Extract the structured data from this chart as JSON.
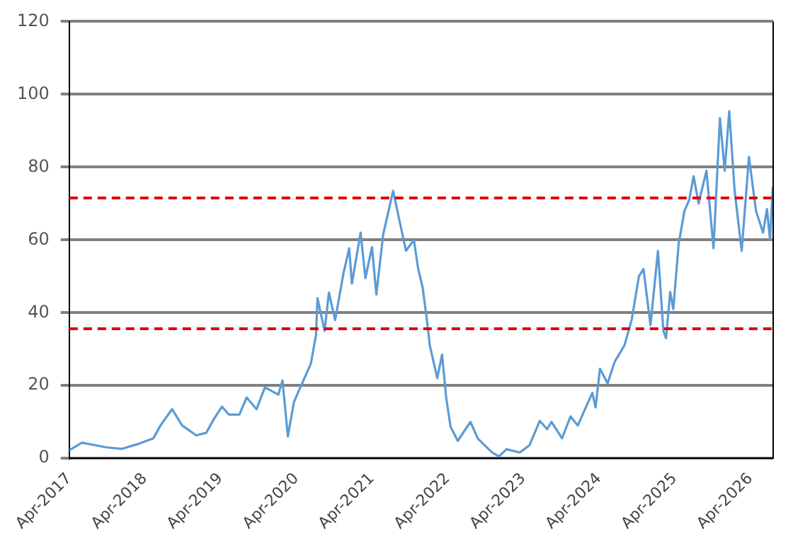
{
  "chart_data": {
    "type": "line",
    "x": [
      "2017-04-01",
      "2017-06-01",
      "2017-09-28",
      "2017-12-12",
      "2018-03-03",
      "2018-05-12",
      "2018-06-15",
      "2018-08-10",
      "2018-09-28",
      "2018-12-05",
      "2019-01-22",
      "2019-02-28",
      "2019-04-08",
      "2019-05-12",
      "2019-07-01",
      "2019-08-05",
      "2019-09-22",
      "2019-11-01",
      "2020-01-05",
      "2020-01-25",
      "2020-02-20",
      "2020-03-20",
      "2020-04-20",
      "2020-06-10",
      "2020-07-05",
      "2020-07-12",
      "2020-08-15",
      "2020-09-05",
      "2020-10-05",
      "2020-11-15",
      "2020-12-12",
      "2020-12-25",
      "2021-02-05",
      "2021-02-28",
      "2021-04-01",
      "2021-04-22",
      "2021-05-25",
      "2021-07-12",
      "2021-08-10",
      "2021-09-12",
      "2021-10-20",
      "2021-11-10",
      "2021-12-01",
      "2021-12-20",
      "2022-01-05",
      "2022-02-10",
      "2022-03-05",
      "2022-03-25",
      "2022-04-15",
      "2022-05-20",
      "2022-07-20",
      "2022-08-25",
      "2022-11-01",
      "2022-12-05",
      "2023-01-10",
      "2023-03-15",
      "2023-05-01",
      "2023-06-20",
      "2023-07-25",
      "2023-08-15",
      "2023-10-05",
      "2023-11-15",
      "2023-12-20",
      "2024-02-28",
      "2024-03-15",
      "2024-04-05",
      "2024-05-12",
      "2024-06-15",
      "2024-08-01",
      "2024-09-05",
      "2024-10-10",
      "2024-11-01",
      "2024-12-05",
      "2025-01-10",
      "2025-02-05",
      "2025-02-18",
      "2025-03-10",
      "2025-03-25",
      "2025-04-20",
      "2025-05-18",
      "2025-06-10",
      "2025-07-01",
      "2025-07-25",
      "2025-09-01",
      "2025-10-05",
      "2025-11-05",
      "2025-11-28",
      "2025-12-20",
      "2026-01-15",
      "2026-02-18",
      "2026-03-25",
      "2026-04-28",
      "2026-06-01",
      "2026-06-20",
      "2026-07-05",
      "2026-07-18"
    ],
    "series": [
      {
        "color": "#5b9bd5",
        "values": [
          2.2,
          4.3,
          3,
          2.6,
          4,
          5.5,
          9,
          13.5,
          9,
          6.3,
          7,
          10.8,
          14.2,
          12,
          12,
          16.7,
          13.5,
          19.5,
          17.5,
          21.4,
          6,
          15.4,
          19.5,
          26,
          34,
          44,
          35,
          45.5,
          38,
          51,
          57.7,
          48,
          62,
          49.5,
          58,
          45,
          61.5,
          73.5,
          65.7,
          57,
          60,
          52,
          47,
          39,
          31,
          22,
          28.5,
          16.7,
          8.7,
          4.8,
          10,
          5.4,
          1.6,
          0.5,
          2.5,
          1.6,
          3.6,
          10.3,
          8,
          10,
          5.5,
          11.5,
          9,
          18,
          14,
          24.6,
          20.6,
          26.5,
          31,
          38,
          50,
          52,
          36.6,
          57,
          35,
          33,
          45.7,
          41,
          59,
          68,
          71,
          77.5,
          70,
          79,
          57.7,
          93.5,
          79,
          95.4,
          73.5,
          57,
          82.8,
          68,
          62,
          68.5,
          60,
          74.5
        ]
      }
    ],
    "xlim": [
      "2017-04-01",
      "2026-07-20"
    ],
    "xticks": [
      {
        "value": "2017-04-01",
        "label": "Apr-2017"
      },
      {
        "value": "2018-04-01",
        "label": "Apr-2018"
      },
      {
        "value": "2019-04-01",
        "label": "Apr-2019"
      },
      {
        "value": "2020-04-01",
        "label": "Apr-2020"
      },
      {
        "value": "2021-04-01",
        "label": "Apr-2021"
      },
      {
        "value": "2022-04-01",
        "label": "Apr-2022"
      },
      {
        "value": "2023-04-01",
        "label": "Apr-2023"
      },
      {
        "value": "2024-04-01",
        "label": "Apr-2024"
      },
      {
        "value": "2025-04-01",
        "label": "Apr-2025"
      },
      {
        "value": "2026-04-01",
        "label": "Apr-2026"
      }
    ],
    "ylim": [
      0,
      120
    ],
    "yticks": [
      0,
      20,
      40,
      60,
      80,
      100,
      120
    ],
    "grid": "y",
    "legend": false,
    "marker": "none",
    "line_style": "solid",
    "ref_lines": [
      {
        "axis": "y",
        "value": 71.5,
        "color": "#e00000",
        "line_style": "dashed"
      },
      {
        "axis": "y",
        "value": 35.6,
        "color": "#e00000",
        "line_style": "dashed"
      }
    ]
  }
}
